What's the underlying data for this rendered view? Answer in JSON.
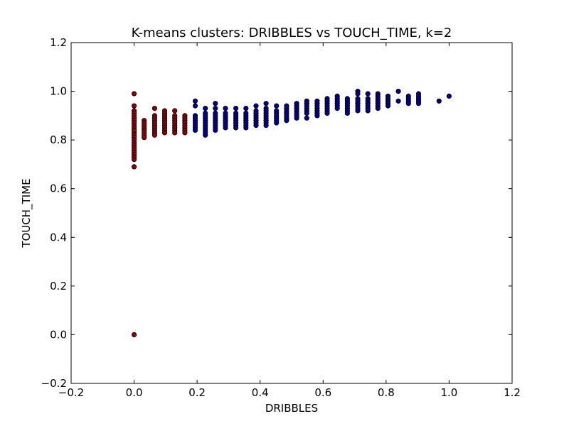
{
  "chart_data": {
    "type": "scatter",
    "title": "K-means clusters: DRIBBLES vs TOUCH_TIME, k=2",
    "xlabel": "DRIBBLES",
    "ylabel": "TOUCH_TIME",
    "xlim": [
      -0.2,
      1.2
    ],
    "ylim": [
      -0.2,
      1.2
    ],
    "xticks": [
      "−0.2",
      "0.0",
      "0.2",
      "0.4",
      "0.6",
      "0.8",
      "1.0",
      "1.2"
    ],
    "yticks": [
      "−0.2",
      "0.0",
      "0.2",
      "0.4",
      "0.6",
      "0.8",
      "1.0",
      "1.2"
    ],
    "xtick_values": [
      -0.2,
      0.0,
      0.2,
      0.4,
      0.6,
      0.8,
      1.0,
      1.2
    ],
    "ytick_values": [
      -0.2,
      0.0,
      0.2,
      0.4,
      0.6,
      0.8,
      1.0,
      1.2
    ],
    "grid": false,
    "series": [
      {
        "color": "#8b0000",
        "x": [
          0.0,
          0.0,
          0.0,
          0.0,
          0.0,
          0.0,
          0.0,
          0.0,
          0.0,
          0.0,
          0.0,
          0.0,
          0.0,
          0.0,
          0.0,
          0.0,
          0.0,
          0.0,
          0.0,
          0.0,
          0.0,
          0.0,
          0.0,
          0.0,
          0.0,
          0.0,
          0.032,
          0.032,
          0.032,
          0.032,
          0.032,
          0.032,
          0.032,
          0.032,
          0.065,
          0.065,
          0.065,
          0.065,
          0.065,
          0.065,
          0.065,
          0.065,
          0.065,
          0.065,
          0.097,
          0.097,
          0.097,
          0.097,
          0.097,
          0.097,
          0.097,
          0.097,
          0.097,
          0.097,
          0.129,
          0.129,
          0.129,
          0.129,
          0.129,
          0.129,
          0.129,
          0.129,
          0.129,
          0.161,
          0.161,
          0.161,
          0.161,
          0.161,
          0.161,
          0.161,
          0.161
        ],
        "y": [
          0.99,
          0.94,
          0.92,
          0.91,
          0.9,
          0.89,
          0.88,
          0.87,
          0.86,
          0.85,
          0.84,
          0.83,
          0.82,
          0.81,
          0.8,
          0.79,
          0.78,
          0.77,
          0.76,
          0.75,
          0.74,
          0.73,
          0.72,
          0.84,
          0.69,
          0.0,
          0.88,
          0.87,
          0.86,
          0.85,
          0.84,
          0.83,
          0.82,
          0.81,
          0.93,
          0.9,
          0.89,
          0.88,
          0.87,
          0.86,
          0.85,
          0.84,
          0.83,
          0.82,
          0.92,
          0.91,
          0.9,
          0.89,
          0.88,
          0.87,
          0.86,
          0.85,
          0.84,
          0.83,
          0.92,
          0.9,
          0.89,
          0.88,
          0.87,
          0.86,
          0.85,
          0.84,
          0.83,
          0.9,
          0.89,
          0.88,
          0.87,
          0.86,
          0.85,
          0.84,
          0.83
        ]
      },
      {
        "color": "#00008b",
        "x": [
          0.194,
          0.194,
          0.194,
          0.194,
          0.194,
          0.194,
          0.194,
          0.194,
          0.194,
          0.226,
          0.226,
          0.226,
          0.226,
          0.226,
          0.226,
          0.226,
          0.226,
          0.226,
          0.226,
          0.226,
          0.258,
          0.258,
          0.258,
          0.258,
          0.258,
          0.258,
          0.258,
          0.258,
          0.258,
          0.258,
          0.29,
          0.29,
          0.29,
          0.29,
          0.29,
          0.29,
          0.29,
          0.29,
          0.323,
          0.323,
          0.323,
          0.323,
          0.323,
          0.323,
          0.323,
          0.323,
          0.355,
          0.355,
          0.355,
          0.355,
          0.355,
          0.355,
          0.355,
          0.355,
          0.387,
          0.387,
          0.387,
          0.387,
          0.387,
          0.387,
          0.387,
          0.387,
          0.419,
          0.419,
          0.419,
          0.419,
          0.419,
          0.419,
          0.419,
          0.419,
          0.419,
          0.452,
          0.452,
          0.452,
          0.452,
          0.452,
          0.452,
          0.452,
          0.484,
          0.484,
          0.484,
          0.484,
          0.484,
          0.484,
          0.484,
          0.516,
          0.516,
          0.516,
          0.516,
          0.516,
          0.516,
          0.516,
          0.548,
          0.548,
          0.548,
          0.548,
          0.548,
          0.548,
          0.548,
          0.581,
          0.581,
          0.581,
          0.581,
          0.581,
          0.581,
          0.581,
          0.613,
          0.613,
          0.613,
          0.613,
          0.613,
          0.613,
          0.613,
          0.645,
          0.645,
          0.645,
          0.645,
          0.645,
          0.645,
          0.677,
          0.677,
          0.677,
          0.677,
          0.677,
          0.677,
          0.677,
          0.71,
          0.71,
          0.71,
          0.71,
          0.71,
          0.71,
          0.71,
          0.71,
          0.742,
          0.742,
          0.742,
          0.742,
          0.742,
          0.742,
          0.742,
          0.774,
          0.774,
          0.774,
          0.774,
          0.774,
          0.774,
          0.774,
          0.806,
          0.806,
          0.806,
          0.806,
          0.806,
          0.839,
          0.839,
          0.871,
          0.871,
          0.871,
          0.871,
          0.903,
          0.903,
          0.903,
          0.903,
          0.903,
          0.968,
          1.0
        ],
        "y": [
          0.96,
          0.94,
          0.9,
          0.89,
          0.88,
          0.87,
          0.86,
          0.85,
          0.84,
          0.93,
          0.91,
          0.9,
          0.89,
          0.88,
          0.87,
          0.86,
          0.85,
          0.84,
          0.83,
          0.82,
          0.95,
          0.93,
          0.91,
          0.9,
          0.89,
          0.88,
          0.87,
          0.86,
          0.85,
          0.84,
          0.93,
          0.91,
          0.9,
          0.89,
          0.88,
          0.87,
          0.86,
          0.85,
          0.93,
          0.91,
          0.9,
          0.89,
          0.88,
          0.87,
          0.86,
          0.85,
          0.93,
          0.91,
          0.9,
          0.89,
          0.88,
          0.87,
          0.86,
          0.85,
          0.94,
          0.92,
          0.91,
          0.9,
          0.89,
          0.88,
          0.87,
          0.86,
          0.95,
          0.93,
          0.92,
          0.91,
          0.9,
          0.89,
          0.88,
          0.87,
          0.86,
          0.94,
          0.92,
          0.91,
          0.9,
          0.89,
          0.88,
          0.87,
          0.94,
          0.93,
          0.92,
          0.91,
          0.9,
          0.89,
          0.88,
          0.95,
          0.94,
          0.93,
          0.92,
          0.91,
          0.9,
          0.89,
          0.96,
          0.95,
          0.94,
          0.93,
          0.92,
          0.91,
          0.89,
          0.96,
          0.95,
          0.94,
          0.93,
          0.92,
          0.91,
          0.9,
          0.97,
          0.96,
          0.95,
          0.94,
          0.93,
          0.92,
          0.91,
          0.98,
          0.97,
          0.96,
          0.95,
          0.94,
          0.93,
          0.97,
          0.96,
          0.95,
          0.94,
          0.93,
          0.92,
          0.91,
          1.0,
          0.99,
          0.97,
          0.96,
          0.95,
          0.94,
          0.93,
          0.92,
          0.99,
          0.97,
          0.96,
          0.95,
          0.94,
          0.93,
          0.92,
          0.99,
          0.98,
          0.97,
          0.96,
          0.95,
          0.94,
          0.93,
          0.98,
          0.97,
          0.96,
          0.95,
          0.94,
          1.0,
          0.96,
          0.98,
          0.97,
          0.96,
          0.95,
          0.99,
          0.98,
          0.97,
          0.96,
          0.95,
          0.96,
          0.98
        ]
      }
    ]
  }
}
